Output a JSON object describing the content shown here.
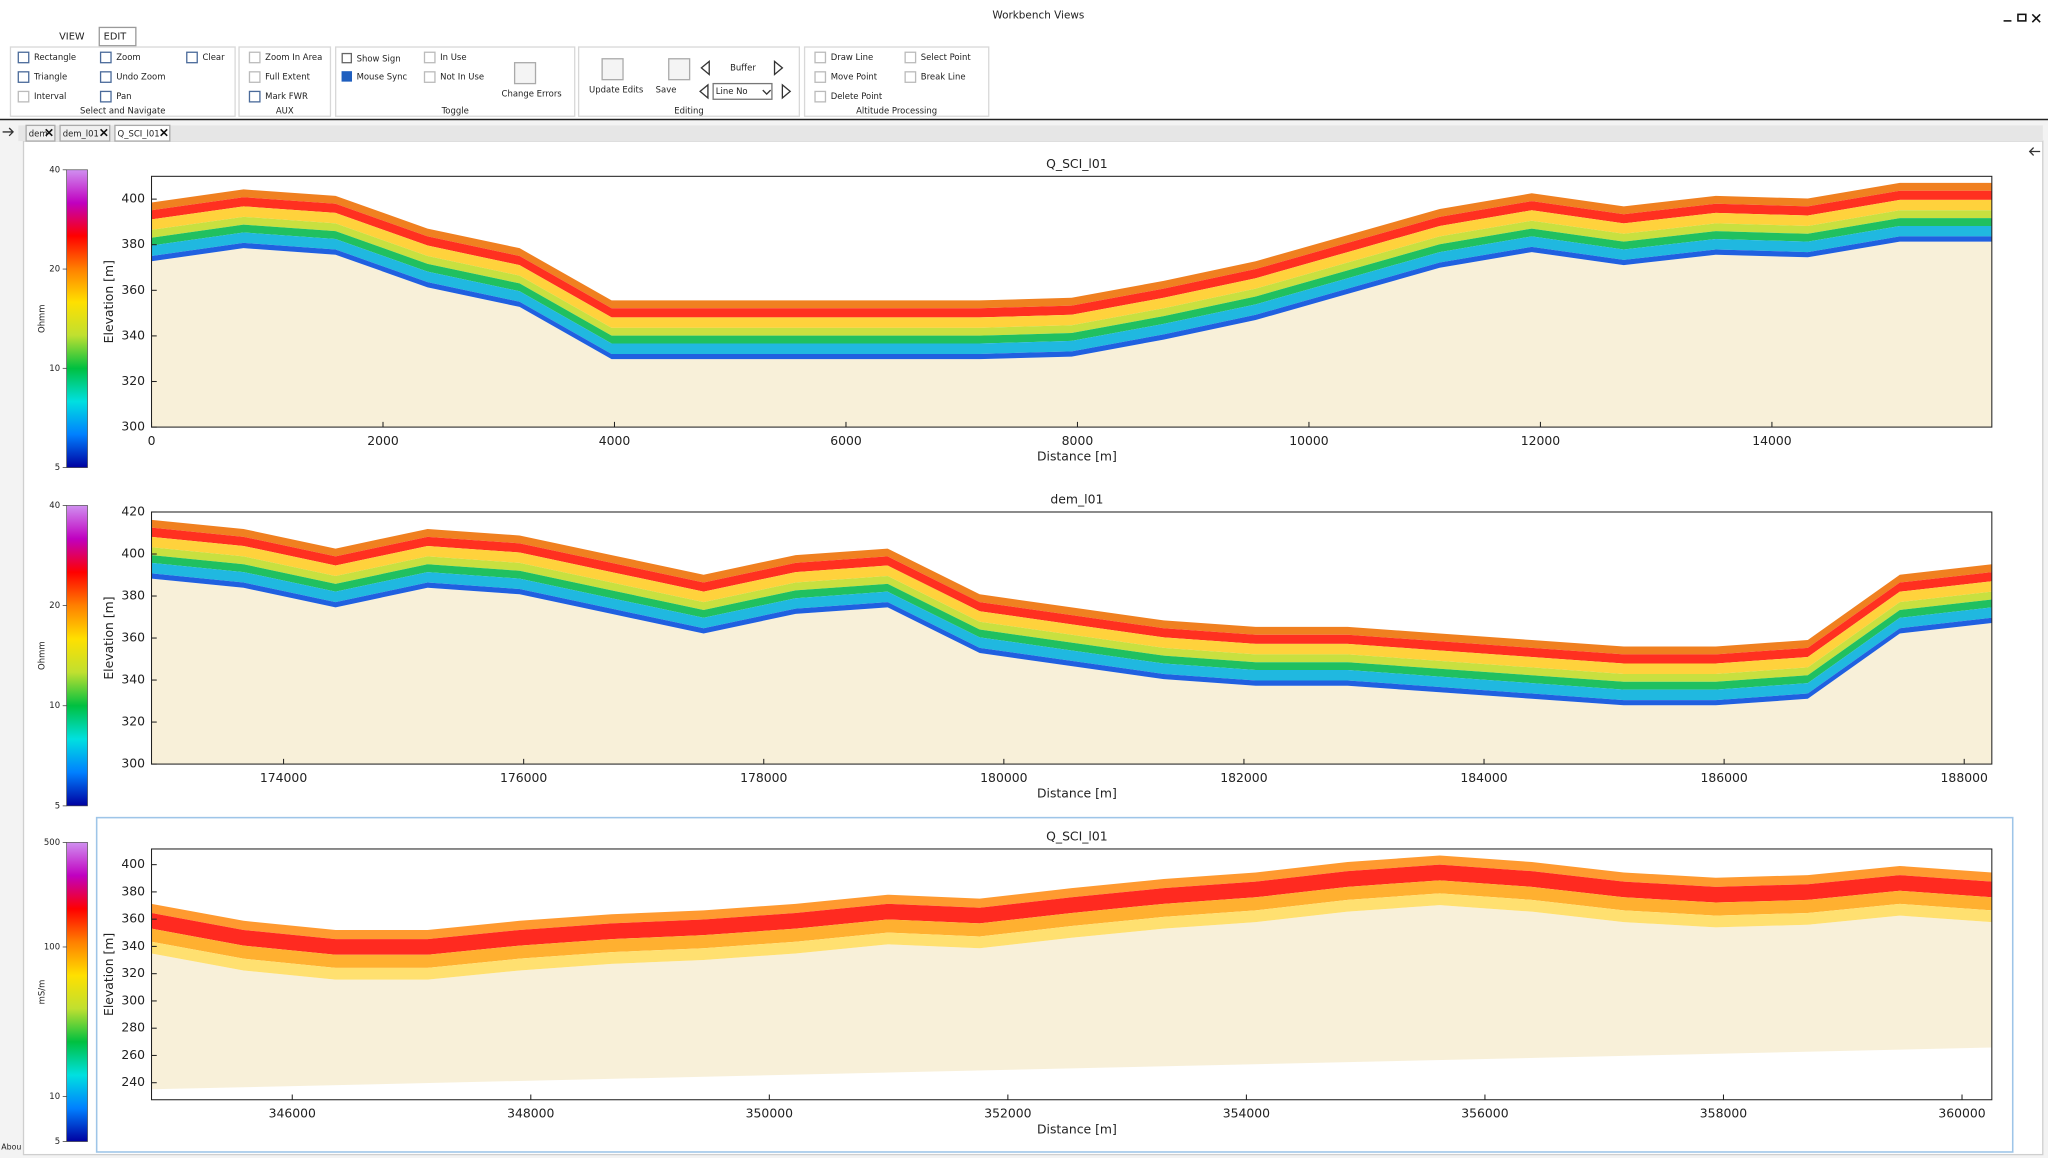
{
  "window": {
    "title": "Workbench Views"
  },
  "ribbon": {
    "tabs": [
      "VIEW",
      "EDIT"
    ],
    "groups": [
      {
        "label": "Select and Navigate",
        "items": [
          "Rectangle",
          "Triangle",
          "Interval",
          "Zoom",
          "Undo Zoom",
          "Pan",
          "Clear"
        ]
      },
      {
        "label": "AUX",
        "items": [
          "Zoom In Area",
          "Full Extent",
          "Mark FWR"
        ]
      },
      {
        "label": "Toggle",
        "items": [
          "Show Sign",
          "Mouse Sync",
          "In Use",
          "Not In Use",
          "Change Errors"
        ]
      },
      {
        "label": "Editing",
        "items": [
          "Update Edits",
          "Save",
          "Buffer",
          "Line No"
        ]
      },
      {
        "label": "Altitude Processing",
        "items": [
          "Draw Line",
          "Move Point",
          "Delete Point",
          "Select Point",
          "Break Line"
        ]
      }
    ]
  },
  "doc_tabs": [
    "dem",
    "dem_l01",
    "Q_SCI_l01"
  ],
  "status": "Abou",
  "chart_data": [
    {
      "type": "section",
      "title": "Q_SCI_l01",
      "xlabel": "Distance [m]",
      "ylabel": "Elevation [m]",
      "xlim": [
        0,
        15900
      ],
      "xticks": [
        0,
        2000,
        4000,
        6000,
        8000,
        10000,
        12000,
        14000
      ],
      "ylim": [
        300,
        410
      ],
      "yticks": [
        300,
        320,
        340,
        360,
        380,
        400
      ],
      "colorbar": {
        "label": "Ohmm",
        "lim": [
          5,
          40
        ],
        "ticks": [
          5,
          10,
          20,
          40
        ],
        "scale": "log",
        "colors": [
          "#0000a0",
          "#0080ff",
          "#00e0e0",
          "#00c040",
          "#c0e030",
          "#ffe000",
          "#ff8000",
          "#ff0000",
          "#c000c0",
          "#d090f0"
        ]
      }
    },
    {
      "type": "section",
      "title": "dem_l01",
      "xlabel": "Distance [m]",
      "ylabel": "Elevation [m]",
      "xlim": [
        172900,
        188230
      ],
      "xticks": [
        174000,
        176000,
        178000,
        180000,
        182000,
        184000,
        186000,
        188000
      ],
      "ylim": [
        300,
        420
      ],
      "yticks": [
        300,
        320,
        340,
        360,
        380,
        400,
        420
      ],
      "colorbar": {
        "label": "Ohmm",
        "lim": [
          5,
          40
        ],
        "ticks": [
          5,
          10,
          20,
          40
        ],
        "scale": "log",
        "colors": [
          "#0000a0",
          "#0080ff",
          "#00e0e0",
          "#00c040",
          "#c0e030",
          "#ffe000",
          "#ff8000",
          "#ff0000",
          "#c000c0",
          "#d090f0"
        ]
      }
    },
    {
      "type": "section",
      "title": "Q_SCI_l01",
      "xlabel": "Distance [m]",
      "ylabel": "Elevation [m]",
      "xlim": [
        344820,
        360250
      ],
      "xticks": [
        346000,
        348000,
        350000,
        352000,
        354000,
        356000,
        358000,
        360000
      ],
      "ylim": [
        227.5,
        411.5
      ],
      "yticks": [
        240,
        260,
        280,
        300,
        320,
        340,
        360,
        380,
        400
      ],
      "colorbar": {
        "label": "mS/m",
        "lim": [
          5,
          500
        ],
        "ticks": [
          5,
          10,
          100,
          500
        ],
        "scale": "log",
        "colors": [
          "#0000a0",
          "#0080ff",
          "#00e0e0",
          "#00c040",
          "#c0e030",
          "#ffe000",
          "#ff8000",
          "#ff0000",
          "#c000c0",
          "#d090f0"
        ]
      }
    }
  ]
}
